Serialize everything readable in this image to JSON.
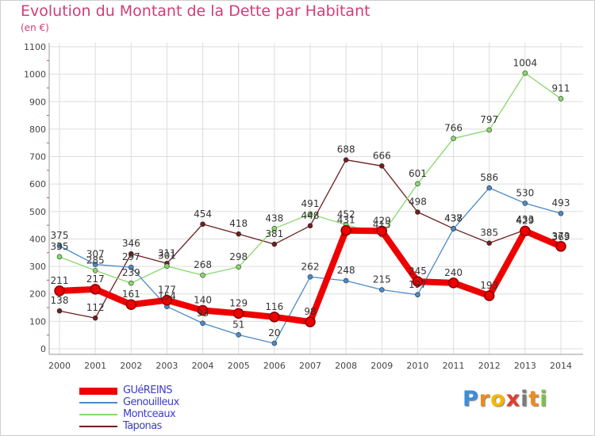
{
  "chart_data": {
    "type": "line",
    "title": "Evolution du Montant de la Dette par Habitant",
    "subtitle": "(en €)",
    "x": [
      "2000",
      "2001",
      "2002",
      "2003",
      "2004",
      "2005",
      "2006",
      "2007",
      "2008",
      "2009",
      "2010",
      "2011",
      "2012",
      "2013",
      "2014"
    ],
    "ylim": [
      0,
      1100
    ],
    "yticks": [
      0,
      100,
      200,
      300,
      400,
      500,
      600,
      700,
      800,
      900,
      1000,
      1100
    ],
    "grid": true,
    "legend_position": "bottom-left",
    "series": [
      {
        "name": "Taponas",
        "color": "#6e1e1e",
        "values": [
          138,
          112,
          346,
          311,
          454,
          418,
          381,
          448,
          688,
          666,
          498,
          438,
          385,
          433,
          369
        ]
      },
      {
        "name": "Montceaux",
        "color": "#88d86a",
        "values": [
          335,
          285,
          239,
          301,
          268,
          298,
          438,
          491,
          452,
          415,
          601,
          766,
          797,
          1004,
          911
        ]
      },
      {
        "name": "Genouilleux",
        "color": "#4a8ac8",
        "values": [
          375,
          307,
          297,
          154,
          93,
          51,
          20,
          262,
          248,
          215,
          197,
          437,
          586,
          530,
          493
        ]
      },
      {
        "name": "GUéREINS",
        "color": "#ee0000",
        "values": [
          211,
          217,
          161,
          177,
          140,
          129,
          116,
          98,
          431,
          429,
          245,
          240,
          193,
          429,
          373
        ]
      }
    ]
  },
  "logo": {
    "letters": [
      "P",
      "r",
      "o",
      "x",
      "i",
      "t",
      "i"
    ],
    "colors": [
      "#3a8fd9",
      "#f08a1c",
      "#f5b800",
      "#e03e2d",
      "#7a7a7a",
      "#f08a1c",
      "#7cc242"
    ]
  }
}
